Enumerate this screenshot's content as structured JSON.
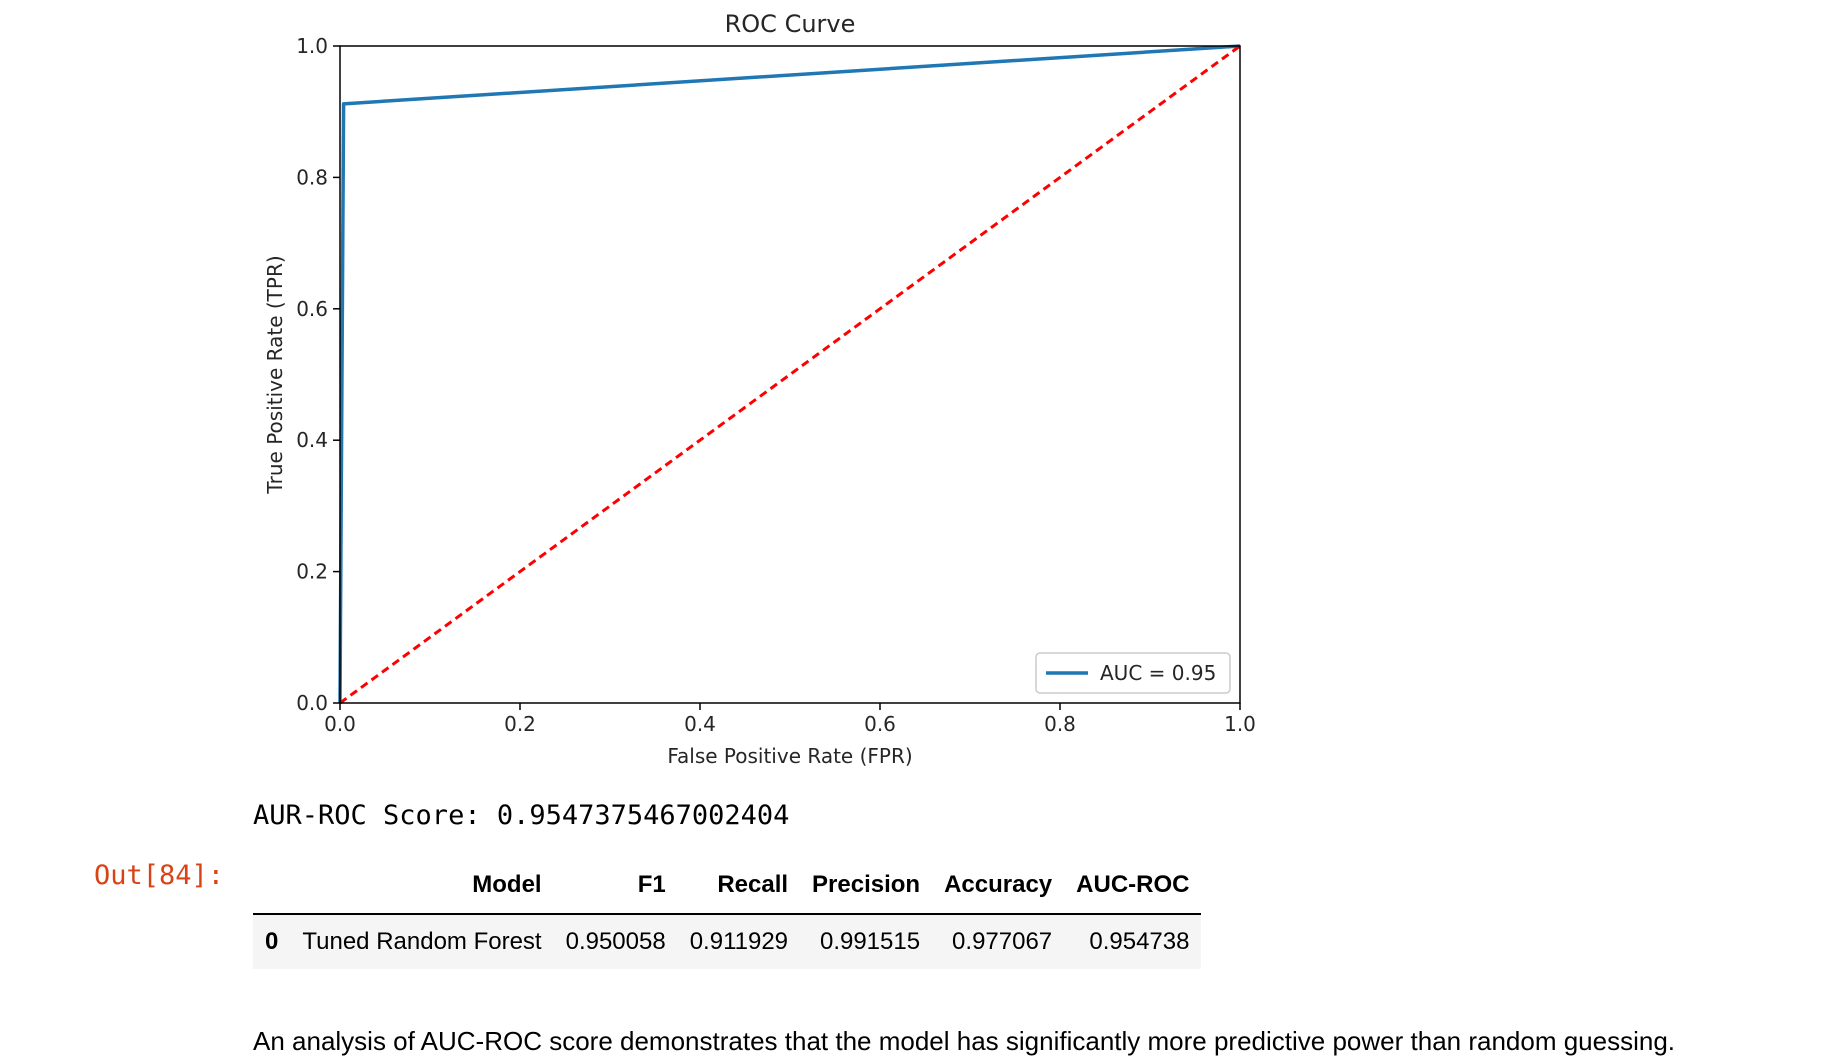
{
  "chart_data": {
    "type": "line",
    "title": "ROC Curve",
    "xlabel": "False Positive Rate (FPR)",
    "ylabel": "True Positive Rate (TPR)",
    "xlim": [
      0.0,
      1.0
    ],
    "ylim": [
      0.0,
      1.0
    ],
    "xticks": [
      "0.0",
      "0.2",
      "0.4",
      "0.6",
      "0.8",
      "1.0"
    ],
    "yticks": [
      "0.0",
      "0.2",
      "0.4",
      "0.6",
      "0.8",
      "1.0"
    ],
    "grid": false,
    "legend_position": "lower-right",
    "series": [
      {
        "name": "AUC = 0.95",
        "color": "#1f77b4",
        "style": "solid",
        "x": [
          0.0,
          0.0,
          0.004,
          1.0
        ],
        "y": [
          0.0,
          0.0,
          0.912,
          1.0
        ]
      },
      {
        "color": "#ff0000",
        "style": "dashed",
        "x": [
          0.0,
          1.0
        ],
        "y": [
          0.0,
          1.0
        ]
      }
    ]
  },
  "stdout_text": "AUR-ROC Score: 0.9547375467002404",
  "out_prompt": "Out[84]:",
  "table": {
    "columns": [
      "",
      "Model",
      "F1",
      "Recall",
      "Precision",
      "Accuracy",
      "AUC-ROC"
    ],
    "rows": [
      [
        "0",
        "Tuned Random Forest",
        "0.950058",
        "0.911929",
        "0.991515",
        "0.977067",
        "0.954738"
      ]
    ]
  },
  "analysis_text": "An analysis of AUC-ROC score demonstrates that the model has significantly more predictive power than random guessing."
}
